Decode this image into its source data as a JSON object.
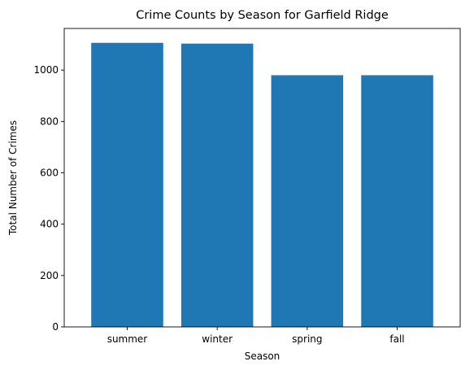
{
  "chart_data": {
    "type": "bar",
    "title": "Crime Counts by Season for Garfield Ridge",
    "xlabel": "Season",
    "ylabel": "Total Number of Crimes",
    "categories": [
      "summer",
      "winter",
      "spring",
      "fall"
    ],
    "values": [
      1106,
      1103,
      980,
      980
    ],
    "ylim": [
      0,
      1162
    ],
    "yticks": [
      0,
      200,
      400,
      600,
      800,
      1000
    ],
    "grid": false,
    "legend": "none",
    "bar_color": "#1f77b4"
  }
}
